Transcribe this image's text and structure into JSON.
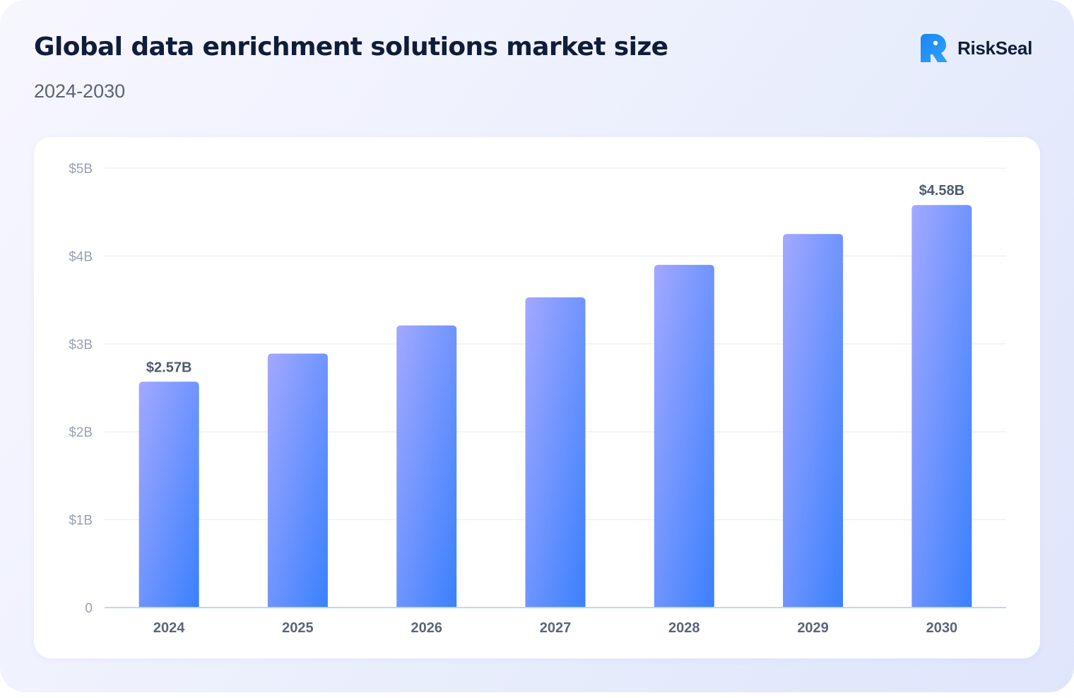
{
  "header": {
    "title": "Global data enrichment solutions market size",
    "subtitle": "2024-2030",
    "brand_name": "RiskSeal",
    "brand_icon": "riskseal-logo-icon"
  },
  "colors": {
    "bar_gradient_start": "#a3a8ff",
    "bar_gradient_end": "#3a80fd",
    "brand_blue": "#1c86f6",
    "title_text": "#0f1d3a"
  },
  "chart_data": {
    "type": "bar",
    "categories": [
      "2024",
      "2025",
      "2026",
      "2027",
      "2028",
      "2029",
      "2030"
    ],
    "values": [
      2.57,
      2.89,
      3.21,
      3.53,
      3.9,
      4.25,
      4.58
    ],
    "unit": "billion USD",
    "data_labels": [
      {
        "index": 0,
        "text": "$2.57B"
      },
      {
        "index": 6,
        "text": "$4.58B"
      }
    ],
    "ylim": [
      0,
      5
    ],
    "yticks": [
      {
        "value": 0,
        "label": "0"
      },
      {
        "value": 1,
        "label": "$1B"
      },
      {
        "value": 2,
        "label": "$2B"
      },
      {
        "value": 3,
        "label": "$3B"
      },
      {
        "value": 4,
        "label": "$4B"
      },
      {
        "value": 5,
        "label": "$5B"
      }
    ],
    "grid": true,
    "legend": "none"
  }
}
